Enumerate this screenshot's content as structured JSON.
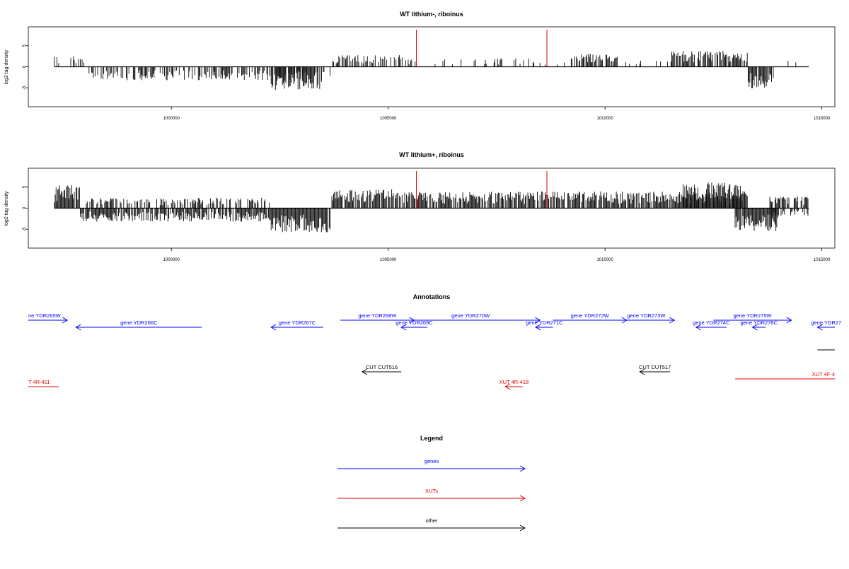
{
  "chart_data": [
    {
      "type": "bar",
      "title": "WT lithium-, riboinus",
      "ylabel": "log2 tag density",
      "xlim": [
        996700,
        1015300
      ],
      "ylim": [
        -9.5,
        9.5
      ],
      "xticks": [
        1000000,
        1005000,
        1010000,
        1015000
      ],
      "yticks": [
        5,
        0,
        -5
      ],
      "series_note": "signal rendered as vertical bars",
      "segments": [
        {
          "from": 997300,
          "to": 998100,
          "amp": 2.5,
          "sign": 1,
          "density": 0.35
        },
        {
          "from": 998100,
          "to": 1003700,
          "amp": 3.2,
          "sign": -1,
          "density": 0.5
        },
        {
          "from": 1002300,
          "to": 1003500,
          "amp": 5.5,
          "sign": -1,
          "density": 0.8
        },
        {
          "from": 1003700,
          "to": 1005400,
          "amp": 2.8,
          "sign": 1,
          "density": 0.45
        },
        {
          "from": 1005400,
          "to": 1009300,
          "amp": 2.0,
          "sign": 1,
          "density": 0.18
        },
        {
          "from": 1009300,
          "to": 1010300,
          "amp": 3.2,
          "sign": 1,
          "density": 0.75
        },
        {
          "from": 1010300,
          "to": 1011500,
          "amp": 1.5,
          "sign": 1,
          "density": 0.1
        },
        {
          "from": 1011500,
          "to": 1013300,
          "amp": 3.8,
          "sign": 1,
          "density": 0.7
        },
        {
          "from": 1013300,
          "to": 1013900,
          "amp": 5.2,
          "sign": -1,
          "density": 0.9
        },
        {
          "from": 1013900,
          "to": 1014700,
          "amp": 2.0,
          "sign": 1,
          "density": 0.1
        }
      ],
      "markers": [
        1005650,
        1008660
      ],
      "marker_color": "#e00000",
      "end_x": 1014700
    },
    {
      "type": "bar",
      "title": "WT lithium+, riboinus",
      "ylabel": "log2 tag density",
      "xlim": [
        996700,
        1015300
      ],
      "ylim": [
        -9.5,
        9.5
      ],
      "xticks": [
        1000000,
        1005000,
        1010000,
        1015000
      ],
      "yticks": [
        5,
        0,
        -5
      ],
      "series_note": "signal rendered as vertical bars",
      "segments": [
        {
          "from": 997300,
          "to": 997900,
          "amp": 5.5,
          "sign": 1,
          "density": 0.9
        },
        {
          "from": 997900,
          "to": 1002300,
          "amp": 3.2,
          "sign": -1,
          "density": 0.8
        },
        {
          "from": 998000,
          "to": 1002300,
          "amp": 2.5,
          "sign": 1,
          "density": 0.5
        },
        {
          "from": 1002300,
          "to": 1003700,
          "amp": 5.8,
          "sign": -1,
          "density": 0.95
        },
        {
          "from": 1003700,
          "to": 1005100,
          "amp": 4.5,
          "sign": 1,
          "density": 0.85
        },
        {
          "from": 1005100,
          "to": 1013300,
          "amp": 4.0,
          "sign": 1,
          "density": 0.85
        },
        {
          "from": 1011800,
          "to": 1013200,
          "amp": 6.2,
          "sign": 1,
          "density": 0.9
        },
        {
          "from": 1013000,
          "to": 1014000,
          "amp": 5.5,
          "sign": -1,
          "density": 0.95
        },
        {
          "from": 1013800,
          "to": 1014700,
          "amp": 2.8,
          "sign": 1,
          "density": 0.7
        },
        {
          "from": 1013800,
          "to": 1014700,
          "amp": 1.8,
          "sign": -1,
          "density": 0.5
        }
      ],
      "markers": [
        1005650,
        1008660
      ],
      "marker_color": "#e00000",
      "end_x": 1014700
    }
  ],
  "annotations": {
    "title": "Annotations",
    "genes": [
      {
        "label": "ne YDR265W",
        "dir": "right",
        "from": 996700,
        "to": 997600,
        "row": 0
      },
      {
        "label": "gene YDR266C",
        "dir": "left",
        "from": 997800,
        "to": 1000700,
        "row": 1
      },
      {
        "label": "gene YDR267C",
        "dir": "left",
        "from": 1002300,
        "to": 1003500,
        "row": 1
      },
      {
        "label": "gene YDR268W",
        "dir": "right",
        "from": 1003900,
        "to": 1005600,
        "row": 0
      },
      {
        "label": "gene YDR269C",
        "dir": "left",
        "from": 1005300,
        "to": 1005900,
        "row": 1
      },
      {
        "label": "gene YDR270W",
        "dir": "right",
        "from": 1005300,
        "to": 1008500,
        "row": "mid"
      },
      {
        "label": "gene YDR271C",
        "dir": "left",
        "from": 1008400,
        "to": 1008800,
        "row": 1
      },
      {
        "label": "gene YDR272W",
        "dir": "right",
        "from": 1008800,
        "to": 1010500,
        "row": 0
      },
      {
        "label": "gene YDR273W",
        "dir": "right",
        "from": 1010300,
        "to": 1011600,
        "row": 0
      },
      {
        "label": "gene YDR274C",
        "dir": "left",
        "from": 1012100,
        "to": 1012800,
        "row": 1
      },
      {
        "label": "gene YDR275W",
        "dir": "right",
        "from": 1012500,
        "to": 1014300,
        "row": 0
      },
      {
        "label": "gene YDR276C",
        "dir": "left",
        "from": 1013400,
        "to": 1013700,
        "row": 1
      },
      {
        "label": "gene YDR27",
        "dir": "left",
        "from": 1014900,
        "to": 1015300,
        "row": 1
      }
    ],
    "other": [
      {
        "label": "CUT CUT516",
        "dir": "left",
        "from": 1004400,
        "to": 1005300
      },
      {
        "label": "CUT CUT517",
        "dir": "left",
        "from": 1010800,
        "to": 1011500
      },
      {
        "label": "",
        "dir": "none",
        "from": 1014900,
        "to": 1015300,
        "row": "upper"
      }
    ],
    "xuts": [
      {
        "label": "T 4R-411",
        "dir": "none",
        "from": 996700,
        "to": 997400
      },
      {
        "label": "XUT 4R-418",
        "dir": "left",
        "from": 1007700,
        "to": 1008100
      },
      {
        "label": "XUT 4F-4",
        "dir": "none",
        "from": 1013000,
        "to": 1015300
      }
    ]
  },
  "legend": {
    "title": "Legend",
    "items": [
      {
        "label": "genes",
        "color": "#0000ff"
      },
      {
        "label": "XUTs",
        "color": "#e00000"
      },
      {
        "label": "other",
        "color": "#000000"
      }
    ]
  },
  "colors": {
    "gene": "#0000ff",
    "xut": "#e00000",
    "other": "#000000",
    "bars": "#000000",
    "axis": "#000000"
  }
}
